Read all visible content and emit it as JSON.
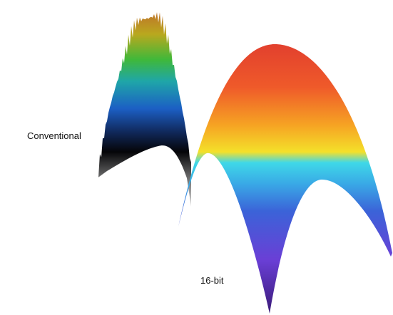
{
  "labels": {
    "conventional": "Conventional",
    "sixteen_bit": "16-bit"
  }
}
